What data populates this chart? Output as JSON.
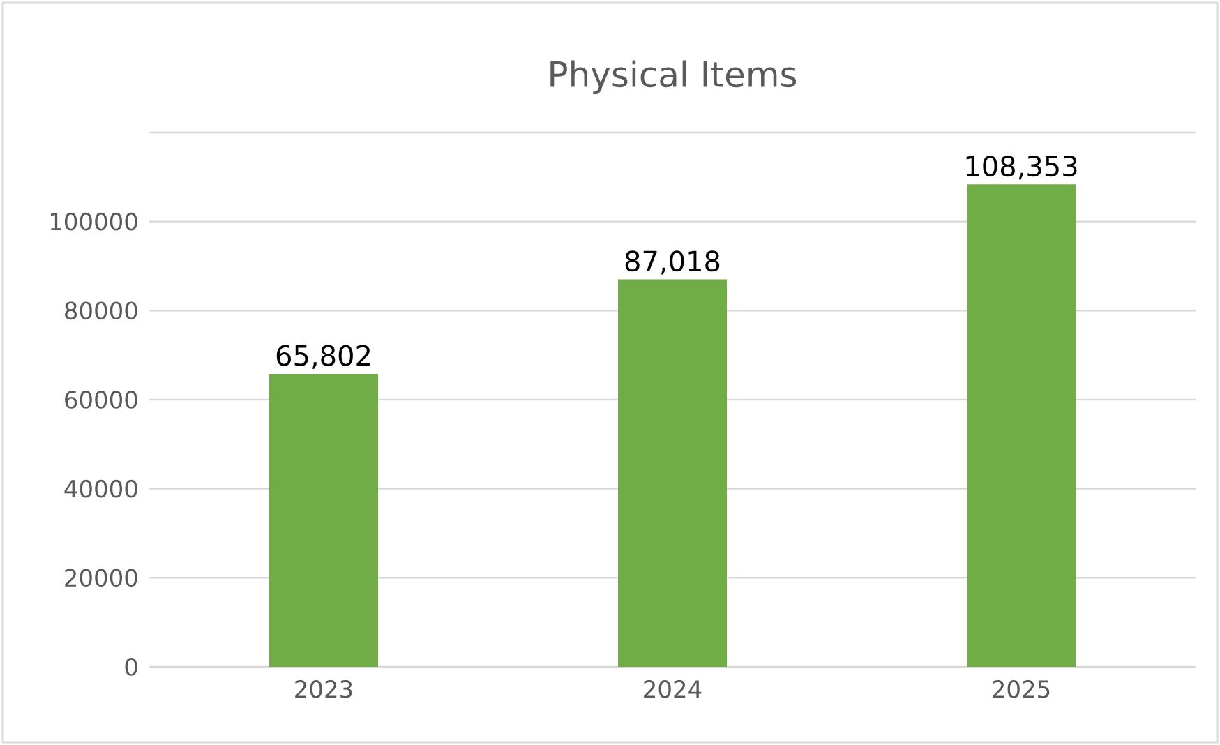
{
  "chart_data": {
    "type": "bar",
    "title": "Physical Items",
    "categories": [
      "2023",
      "2024",
      "2025"
    ],
    "values": [
      65802,
      87018,
      108353
    ],
    "value_labels": [
      "65,802",
      "87,018",
      "108,353"
    ],
    "color": "#70ad47",
    "ylim": [
      0,
      120000
    ],
    "yticks": [
      0,
      20000,
      40000,
      60000,
      80000,
      100000,
      {
        "value": 120000,
        "label": null
      }
    ],
    "grid": "y"
  }
}
